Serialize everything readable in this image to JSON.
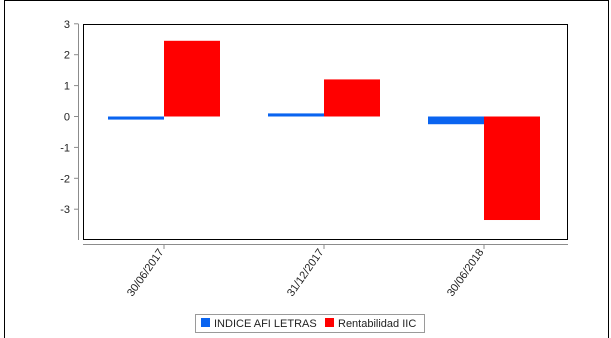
{
  "chart_data": {
    "type": "bar",
    "title": "",
    "xlabel": "",
    "ylabel": "",
    "categories": [
      "30/06/2017",
      "31/12/2017",
      "30/06/2018"
    ],
    "series": [
      {
        "name": "INDICE AFI LETRAS",
        "color": "#0a64f0",
        "values": [
          -0.1,
          0.1,
          -0.25
        ]
      },
      {
        "name": "Rentabilidad IIC",
        "color": "#ff0000",
        "values": [
          2.45,
          1.2,
          -3.35
        ]
      }
    ],
    "ylim": [
      -3.9,
      3
    ],
    "yticks": [
      3,
      2,
      1,
      0,
      -1,
      -2,
      -3
    ],
    "grid": false,
    "legend_position": "bottom-center"
  }
}
